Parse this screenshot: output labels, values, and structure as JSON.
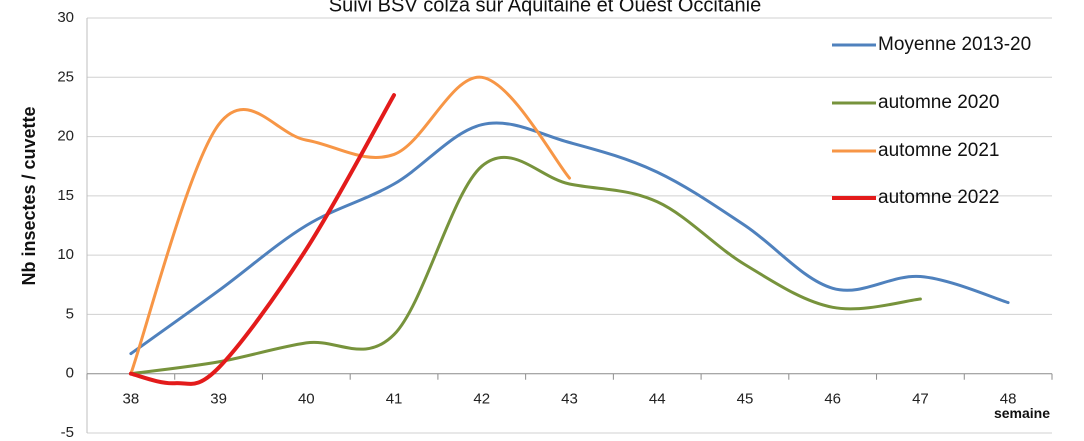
{
  "chart_data": {
    "type": "line",
    "title": "Suivi BSV colza sur Aquitaine et Ouest Occitanie",
    "xlabel": "semaine",
    "ylabel": "Nb insectes / cuvette",
    "x": [
      38,
      39,
      40,
      41,
      42,
      43,
      44,
      45,
      46,
      47,
      48
    ],
    "xlim": [
      37.5,
      48.5
    ],
    "ylim": [
      -5,
      30
    ],
    "yticks": [
      -5,
      0,
      5,
      10,
      15,
      20,
      25,
      30
    ],
    "grid": "horizontal",
    "legend": "top-right",
    "series": [
      {
        "name": "Moyenne 2013-20",
        "color": "#4f81bd",
        "x": [
          38,
          39,
          40,
          41,
          42,
          43,
          44,
          45,
          46,
          47,
          48
        ],
        "values": [
          1.7,
          7.0,
          12.5,
          16.0,
          21.0,
          19.5,
          17.0,
          12.5,
          7.2,
          8.2,
          6.0
        ]
      },
      {
        "name": "automne 2020",
        "color": "#77933c",
        "x": [
          38,
          39,
          40,
          41,
          42,
          43,
          44,
          45,
          46,
          47
        ],
        "values": [
          0,
          1.0,
          2.6,
          3.3,
          17.5,
          16.0,
          14.5,
          9.2,
          5.6,
          6.3
        ]
      },
      {
        "name": "automne 2021",
        "color": "#f79646",
        "x": [
          38,
          39,
          40,
          41,
          42,
          43
        ],
        "values": [
          0,
          21.0,
          19.7,
          18.5,
          25.0,
          16.5
        ]
      },
      {
        "name": "automne 2022",
        "color": "#e31b1b",
        "x": [
          38,
          38.5,
          39,
          40,
          41
        ],
        "values": [
          0,
          -0.8,
          0.5,
          10.5,
          23.5
        ]
      }
    ]
  }
}
